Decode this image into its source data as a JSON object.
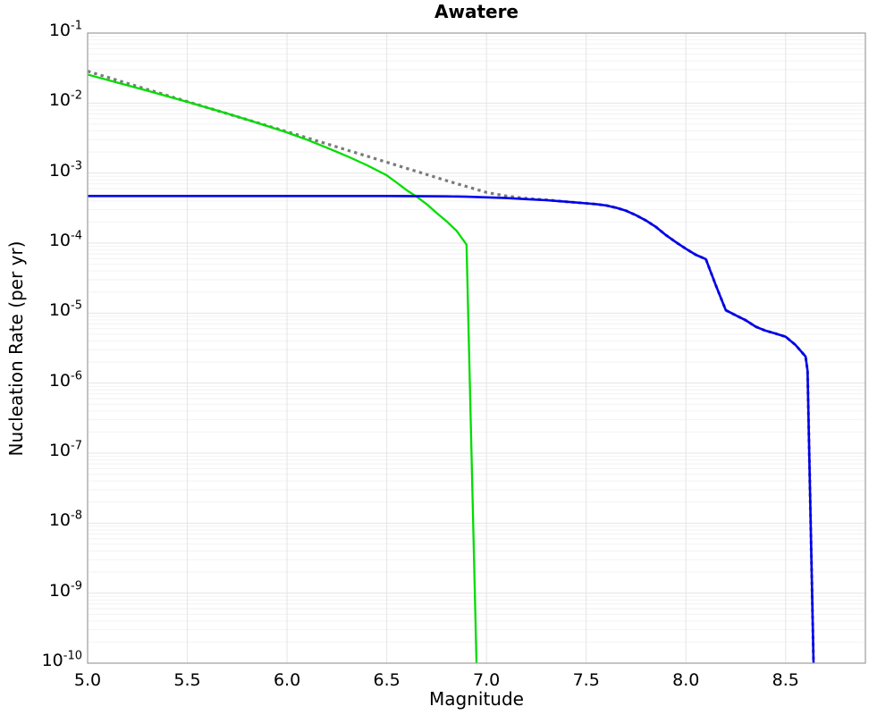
{
  "page": {
    "background": "#ffffff"
  },
  "chart_data": {
    "type": "line",
    "title": "Awatere",
    "xlabel": "Magnitude",
    "ylabel": "Nucleation Rate (per yr)",
    "x_range": [
      5.0,
      8.9
    ],
    "y_range_exponents": [
      -1,
      -10
    ],
    "x_ticks": [
      5.0,
      5.5,
      6.0,
      6.5,
      7.0,
      7.5,
      8.0,
      8.5
    ],
    "y_tick_exponents": [
      -1,
      -2,
      -3,
      -4,
      -5,
      -6,
      -7,
      -8,
      -9,
      -10
    ],
    "grid": {
      "enabled": true,
      "major_color": "#e5e5e5",
      "minor_color": "#f2f2f2",
      "frame_color": "#a3a3a3"
    },
    "legend": "none",
    "series": [
      {
        "name": "gray-dotted-gr-reference",
        "style": "dotted",
        "color": "#7a7a7a",
        "width": 3.2,
        "points": [
          [
            5.0,
            0.0285
          ],
          [
            5.5,
            0.0105
          ],
          [
            6.0,
            0.0039
          ],
          [
            6.5,
            0.00143
          ],
          [
            6.8,
            0.00078
          ],
          [
            7.0,
            0.00053
          ],
          [
            7.1,
            0.00047
          ],
          [
            7.2,
            0.000435
          ],
          [
            7.3,
            0.000415
          ],
          [
            7.4,
            0.00039
          ],
          [
            7.5,
            0.00037
          ],
          [
            7.55,
            0.00036
          ],
          [
            7.6,
            0.000345
          ],
          [
            7.65,
            0.00032
          ],
          [
            7.7,
            0.00029
          ],
          [
            7.75,
            0.00025
          ],
          [
            7.8,
            0.00021
          ],
          [
            7.85,
            0.00017
          ],
          [
            7.9,
            0.00013
          ],
          [
            7.95,
            0.000103
          ],
          [
            8.0,
            8.3e-05
          ],
          [
            8.05,
            6.8e-05
          ],
          [
            8.1,
            5.9e-05
          ],
          [
            8.15,
            2.5e-05
          ],
          [
            8.2,
            1.1e-05
          ],
          [
            8.25,
            9.3e-06
          ],
          [
            8.3,
            7.9e-06
          ],
          [
            8.35,
            6.4e-06
          ],
          [
            8.4,
            5.6e-06
          ],
          [
            8.45,
            5.1e-06
          ],
          [
            8.5,
            4.6e-06
          ],
          [
            8.55,
            3.5e-06
          ],
          [
            8.6,
            2.4e-06
          ],
          [
            8.61,
            1.5e-06
          ],
          [
            8.64,
            1e-10
          ]
        ]
      },
      {
        "name": "green-tapered-mfd",
        "style": "solid",
        "color": "#00dd00",
        "width": 2.3,
        "points": [
          [
            5.0,
            0.0255
          ],
          [
            5.1,
            0.0214
          ],
          [
            5.2,
            0.0179
          ],
          [
            5.3,
            0.015
          ],
          [
            5.4,
            0.0125
          ],
          [
            5.5,
            0.0104
          ],
          [
            5.6,
            0.0086
          ],
          [
            5.7,
            0.0071
          ],
          [
            5.8,
            0.0058
          ],
          [
            5.9,
            0.0047
          ],
          [
            6.0,
            0.0038
          ],
          [
            6.1,
            0.003
          ],
          [
            6.2,
            0.0023
          ],
          [
            6.3,
            0.00175
          ],
          [
            6.4,
            0.0013
          ],
          [
            6.5,
            0.00093
          ],
          [
            6.55,
            0.00073
          ],
          [
            6.6,
            0.00057
          ],
          [
            6.65,
            0.00046
          ],
          [
            6.7,
            0.00036
          ],
          [
            6.75,
            0.00027
          ],
          [
            6.8,
            0.000205
          ],
          [
            6.85,
            0.00015
          ],
          [
            6.9,
            9.5e-05
          ],
          [
            6.95,
            1e-10
          ]
        ]
      },
      {
        "name": "blue-nucleation-rate",
        "style": "solid",
        "color": "#0000ee",
        "width": 2.6,
        "points": [
          [
            5.0,
            0.00047
          ],
          [
            6.0,
            0.00047
          ],
          [
            6.5,
            0.00047
          ],
          [
            6.8,
            0.000465
          ],
          [
            6.9,
            0.00046
          ],
          [
            7.0,
            0.00045
          ],
          [
            7.1,
            0.00044
          ],
          [
            7.2,
            0.000425
          ],
          [
            7.3,
            0.00041
          ],
          [
            7.4,
            0.00039
          ],
          [
            7.5,
            0.00037
          ],
          [
            7.55,
            0.00036
          ],
          [
            7.6,
            0.000345
          ],
          [
            7.65,
            0.00032
          ],
          [
            7.7,
            0.00029
          ],
          [
            7.75,
            0.00025
          ],
          [
            7.8,
            0.00021
          ],
          [
            7.85,
            0.00017
          ],
          [
            7.9,
            0.00013
          ],
          [
            7.95,
            0.000103
          ],
          [
            8.0,
            8.3e-05
          ],
          [
            8.05,
            6.8e-05
          ],
          [
            8.1,
            5.9e-05
          ],
          [
            8.15,
            2.5e-05
          ],
          [
            8.2,
            1.1e-05
          ],
          [
            8.25,
            9.3e-06
          ],
          [
            8.3,
            7.9e-06
          ],
          [
            8.35,
            6.4e-06
          ],
          [
            8.4,
            5.6e-06
          ],
          [
            8.45,
            5.1e-06
          ],
          [
            8.5,
            4.6e-06
          ],
          [
            8.55,
            3.5e-06
          ],
          [
            8.6,
            2.4e-06
          ],
          [
            8.61,
            1.5e-06
          ],
          [
            8.64,
            1e-10
          ]
        ]
      }
    ]
  }
}
